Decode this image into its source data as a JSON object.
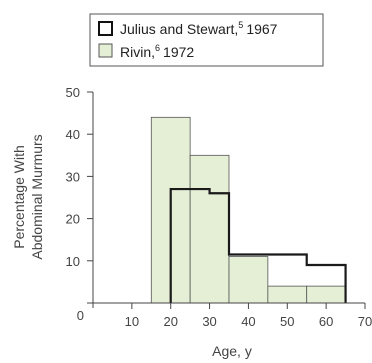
{
  "chart_data": {
    "type": "histogram",
    "xlabel": "Age, y",
    "ylabel_lines": [
      "Percentage With",
      "Abdominal Murmurs"
    ],
    "xlim": [
      0,
      70
    ],
    "ylim": [
      0,
      50
    ],
    "x_ticks": [
      0,
      10,
      20,
      30,
      40,
      50,
      60,
      70
    ],
    "y_ticks": [
      0,
      10,
      20,
      30,
      40,
      50
    ],
    "grid": false,
    "legend_position": "top",
    "series": [
      {
        "name": "Julius and Stewart,",
        "ref": "5",
        "year": "1967",
        "style": "outline",
        "color": "#1a1a1a",
        "bins": [
          {
            "x0": 20,
            "x1": 25,
            "y": 27
          },
          {
            "x0": 25,
            "x1": 30,
            "y": 27
          },
          {
            "x0": 30,
            "x1": 35,
            "y": 26
          },
          {
            "x0": 35,
            "x1": 45,
            "y": 11.5
          },
          {
            "x0": 45,
            "x1": 55,
            "y": 11.5
          },
          {
            "x0": 55,
            "x1": 65,
            "y": 9
          }
        ]
      },
      {
        "name": "Rivin,",
        "ref": "6",
        "year": "1972",
        "style": "filled",
        "color": "#e4efd6",
        "edge": "#555555",
        "bins": [
          {
            "x0": 15,
            "x1": 25,
            "y": 44
          },
          {
            "x0": 25,
            "x1": 35,
            "y": 35
          },
          {
            "x0": 35,
            "x1": 45,
            "y": 11
          },
          {
            "x0": 45,
            "x1": 55,
            "y": 4
          },
          {
            "x0": 55,
            "x1": 65,
            "y": 4
          }
        ]
      }
    ]
  }
}
